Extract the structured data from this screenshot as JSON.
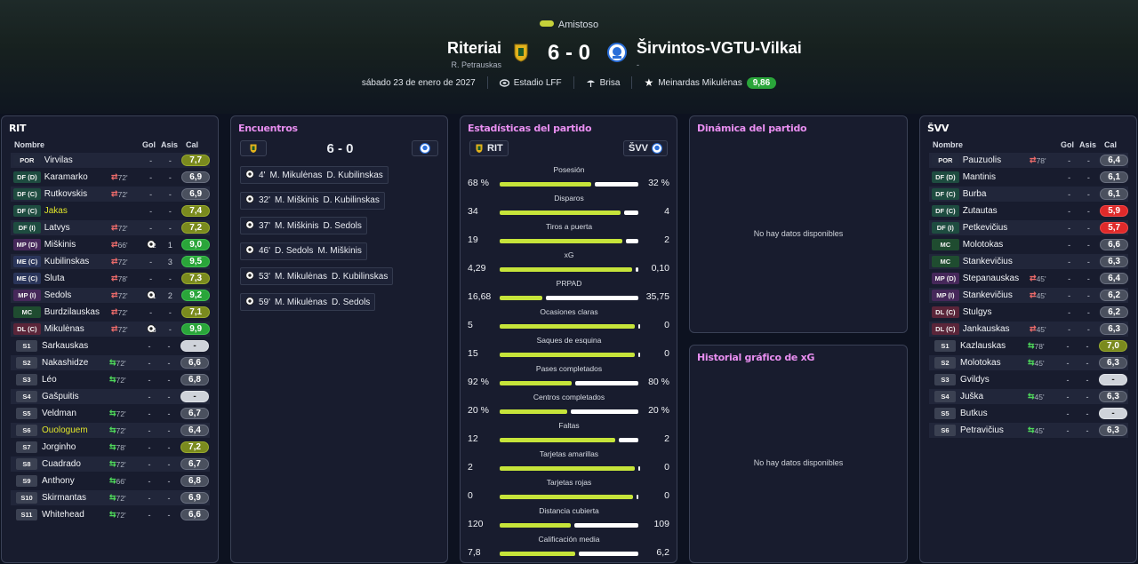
{
  "match": {
    "competition": "Amistoso",
    "home": {
      "name": "Riteriai",
      "manager": "R. Petrauskas",
      "short": "RIT"
    },
    "away": {
      "name": "Širvintos-VGTU-Vilkai",
      "manager": "-",
      "short": "ŠVV"
    },
    "score": "6 - 0",
    "date": "sábado 23 de enero de 2027",
    "stadium": "Estadio LFF",
    "weather": "Brisa",
    "motm": "Meinardas Mikulėnas",
    "motm_rating": "9,86",
    "colors": {
      "accent_purple": "#e88ef0",
      "home_bar": "#c6e43a",
      "rating_green": "#2aa53a"
    }
  },
  "headers": {
    "name": "Nombre",
    "goals": "Gol",
    "assists": "Asis",
    "rating": "Cal"
  },
  "home_players": [
    {
      "pos": "POR",
      "pc": "gk",
      "name": "Virvilas",
      "sub": "",
      "goals": "-",
      "assists": "-",
      "rating": "7,7",
      "rc": "olive"
    },
    {
      "pos": "DF (D)",
      "pc": "df",
      "name": "Karamarko",
      "sub": "off",
      "min": "72'",
      "goals": "-",
      "assists": "-",
      "rating": "6,9",
      "rc": ""
    },
    {
      "pos": "DF (C)",
      "pc": "df",
      "name": "Rutkovskis",
      "sub": "off",
      "min": "72'",
      "goals": "-",
      "assists": "-",
      "rating": "6,9",
      "rc": ""
    },
    {
      "pos": "DF (C)",
      "pc": "df",
      "name": "Jakas",
      "yellow": true,
      "sub": "",
      "goals": "-",
      "assists": "-",
      "rating": "7,4",
      "rc": "olive"
    },
    {
      "pos": "DF (I)",
      "pc": "df",
      "name": "Latvys",
      "sub": "off",
      "min": "72'",
      "goals": "-",
      "assists": "-",
      "rating": "7,2",
      "rc": "olive"
    },
    {
      "pos": "MP (D)",
      "pc": "mp",
      "name": "Miškinis",
      "sub": "off",
      "min": "66'",
      "goals": "ball2",
      "assists": "1",
      "rating": "9,0",
      "rc": "green"
    },
    {
      "pos": "ME (C)",
      "pc": "me",
      "name": "Kubilinskas",
      "sub": "off",
      "min": "72'",
      "goals": "-",
      "assists": "3",
      "rating": "9,5",
      "rc": "green"
    },
    {
      "pos": "ME (C)",
      "pc": "me",
      "name": "Šluta",
      "sub": "off",
      "min": "78'",
      "goals": "-",
      "assists": "-",
      "rating": "7,3",
      "rc": "olive"
    },
    {
      "pos": "MP (I)",
      "pc": "mp",
      "name": "Sedols",
      "sub": "off",
      "min": "72'",
      "goals": "ball1",
      "assists": "2",
      "rating": "9,2",
      "rc": "green"
    },
    {
      "pos": "MC",
      "pc": "mc",
      "name": "Burdzilauskas",
      "sub": "off",
      "min": "72'",
      "goals": "-",
      "assists": "-",
      "rating": "7,1",
      "rc": "olive"
    },
    {
      "pos": "DL (C)",
      "pc": "dl",
      "name": "Mikulėnas",
      "sub": "off",
      "min": "72'",
      "goals": "ball3",
      "assists": "-",
      "rating": "9,9",
      "rc": "green"
    },
    {
      "pos": "S1",
      "pc": "sub",
      "name": "Šarkauskas",
      "sub": "",
      "goals": "-",
      "assists": "-",
      "rating": "-",
      "rc": "dash"
    },
    {
      "pos": "S2",
      "pc": "sub",
      "name": "Nakashidze",
      "sub": "on",
      "min": "72'",
      "goals": "-",
      "assists": "-",
      "rating": "6,6",
      "rc": ""
    },
    {
      "pos": "S3",
      "pc": "sub",
      "name": "Léo",
      "sub": "on",
      "min": "72'",
      "goals": "-",
      "assists": "-",
      "rating": "6,8",
      "rc": ""
    },
    {
      "pos": "S4",
      "pc": "sub",
      "name": "Gašpuitis",
      "sub": "",
      "goals": "-",
      "assists": "-",
      "rating": "-",
      "rc": "dash"
    },
    {
      "pos": "S5",
      "pc": "sub",
      "name": "Veldman",
      "sub": "on",
      "min": "72'",
      "goals": "-",
      "assists": "-",
      "rating": "6,7",
      "rc": ""
    },
    {
      "pos": "S6",
      "pc": "sub",
      "name": "Ouologuem",
      "yellow": true,
      "sub": "on",
      "min": "72'",
      "goals": "-",
      "assists": "-",
      "rating": "6,4",
      "rc": ""
    },
    {
      "pos": "S7",
      "pc": "sub",
      "name": "Jorginho",
      "sub": "on",
      "min": "78'",
      "goals": "-",
      "assists": "-",
      "rating": "7,2",
      "rc": "olive"
    },
    {
      "pos": "S8",
      "pc": "sub",
      "name": "Cuadrado",
      "sub": "on",
      "min": "72'",
      "goals": "-",
      "assists": "-",
      "rating": "6,7",
      "rc": ""
    },
    {
      "pos": "S9",
      "pc": "sub",
      "name": "Anthony",
      "sub": "on",
      "min": "66'",
      "goals": "-",
      "assists": "-",
      "rating": "6,8",
      "rc": ""
    },
    {
      "pos": "S10",
      "pc": "sub",
      "name": "Skirmantas",
      "sub": "on",
      "min": "72'",
      "goals": "-",
      "assists": "-",
      "rating": "6,9",
      "rc": ""
    },
    {
      "pos": "S11",
      "pc": "sub",
      "name": "Whitehead",
      "sub": "on",
      "min": "72'",
      "goals": "-",
      "assists": "-",
      "rating": "6,6",
      "rc": ""
    }
  ],
  "away_players": [
    {
      "pos": "POR",
      "pc": "gk",
      "name": "Pauzuolis",
      "sub": "off",
      "min": "78'",
      "goals": "-",
      "assists": "-",
      "rating": "6,4",
      "rc": ""
    },
    {
      "pos": "DF (D)",
      "pc": "df",
      "name": "Mantinis",
      "sub": "",
      "goals": "-",
      "assists": "-",
      "rating": "6,1",
      "rc": ""
    },
    {
      "pos": "DF (C)",
      "pc": "df",
      "name": "Burba",
      "sub": "",
      "goals": "-",
      "assists": "-",
      "rating": "6,1",
      "rc": ""
    },
    {
      "pos": "DF (C)",
      "pc": "df",
      "name": "Žutautas",
      "sub": "",
      "goals": "-",
      "assists": "-",
      "rating": "5,9",
      "rc": "red"
    },
    {
      "pos": "DF (I)",
      "pc": "df",
      "name": "Petkevičius",
      "sub": "",
      "goals": "-",
      "assists": "-",
      "rating": "5,7",
      "rc": "red"
    },
    {
      "pos": "MC",
      "pc": "mc",
      "name": "Molotokas",
      "sub": "",
      "goals": "-",
      "assists": "-",
      "rating": "6,6",
      "rc": ""
    },
    {
      "pos": "MC",
      "pc": "mc",
      "name": "Stankevičius",
      "sub": "",
      "goals": "-",
      "assists": "-",
      "rating": "6,3",
      "rc": ""
    },
    {
      "pos": "MP (D)",
      "pc": "mp",
      "name": "Stepanauskas",
      "sub": "off",
      "min": "45'",
      "goals": "-",
      "assists": "-",
      "rating": "6,4",
      "rc": ""
    },
    {
      "pos": "MP (I)",
      "pc": "mp",
      "name": "Stankevičius",
      "sub": "off",
      "min": "45'",
      "goals": "-",
      "assists": "-",
      "rating": "6,2",
      "rc": ""
    },
    {
      "pos": "DL (C)",
      "pc": "dl",
      "name": "Stulgys",
      "sub": "",
      "goals": "-",
      "assists": "-",
      "rating": "6,2",
      "rc": ""
    },
    {
      "pos": "DL (C)",
      "pc": "dl",
      "name": "Jankauskas",
      "sub": "off",
      "min": "45'",
      "goals": "-",
      "assists": "-",
      "rating": "6,3",
      "rc": ""
    },
    {
      "pos": "S1",
      "pc": "sub",
      "name": "Kazlauskas",
      "sub": "on",
      "min": "78'",
      "goals": "-",
      "assists": "-",
      "rating": "7,0",
      "rc": "olive"
    },
    {
      "pos": "S2",
      "pc": "sub",
      "name": "Molotokas",
      "sub": "on",
      "min": "45'",
      "goals": "-",
      "assists": "-",
      "rating": "6,3",
      "rc": ""
    },
    {
      "pos": "S3",
      "pc": "sub",
      "name": "Gvildys",
      "sub": "",
      "goals": "-",
      "assists": "-",
      "rating": "-",
      "rc": "dash"
    },
    {
      "pos": "S4",
      "pc": "sub",
      "name": "Juška",
      "sub": "on",
      "min": "45'",
      "goals": "-",
      "assists": "-",
      "rating": "6,3",
      "rc": ""
    },
    {
      "pos": "S5",
      "pc": "sub",
      "name": "Butkus",
      "sub": "",
      "goals": "-",
      "assists": "-",
      "rating": "-",
      "rc": "dash"
    },
    {
      "pos": "S6",
      "pc": "sub",
      "name": "Petravičius",
      "sub": "on",
      "min": "45'",
      "goals": "-",
      "assists": "-",
      "rating": "6,3",
      "rc": ""
    }
  ],
  "panels": {
    "home_title": "RIT",
    "away_title": "ŠVV",
    "encuentros": "Encuentros",
    "stats": "Estadísticas del partido",
    "dynamics": "Dinámica del partido",
    "xg_history": "Historial gráfico de xG",
    "no_data": "No hay datos disponibles"
  },
  "goals": [
    {
      "minute": "4'",
      "scorer": "M. Mikulėnas",
      "assist": "D. Kubilinskas"
    },
    {
      "minute": "32'",
      "scorer": "M. Miškinis",
      "assist": "D. Kubilinskas"
    },
    {
      "minute": "37'",
      "scorer": "M. Miškinis",
      "assist": "D. Sedols"
    },
    {
      "minute": "46'",
      "scorer": "D. Sedols",
      "assist": "M. Miškinis"
    },
    {
      "minute": "53'",
      "scorer": "M. Mikulėnas",
      "assist": "D. Kubilinskas"
    },
    {
      "minute": "59'",
      "scorer": "M. Mikulėnas",
      "assist": "D. Sedols"
    }
  ],
  "stats": [
    {
      "label": "Posesión",
      "home": "68 %",
      "away": "32 %",
      "h": 68,
      "a": 32
    },
    {
      "label": "Disparos",
      "home": "34",
      "away": "4",
      "h": 34,
      "a": 4
    },
    {
      "label": "Tiros a puerta",
      "home": "19",
      "away": "2",
      "h": 19,
      "a": 2
    },
    {
      "label": "xG",
      "home": "4,29",
      "away": "0,10",
      "h": 4.29,
      "a": 0.1
    },
    {
      "label": "PRPAD",
      "home": "16,68",
      "away": "35,75",
      "h": 16.68,
      "a": 35.75
    },
    {
      "label": "Ocasiones claras",
      "home": "5",
      "away": "0",
      "h": 5,
      "a": 0
    },
    {
      "label": "Saques de esquina",
      "home": "15",
      "away": "0",
      "h": 15,
      "a": 0
    },
    {
      "label": "Pases completados",
      "home": "92 %",
      "away": "80 %",
      "h": 92,
      "a": 80
    },
    {
      "label": "Centros completados",
      "home": "20 %",
      "away": "20 %",
      "h": 20,
      "a": 20
    },
    {
      "label": "Faltas",
      "home": "12",
      "away": "2",
      "h": 12,
      "a": 2
    },
    {
      "label": "Tarjetas amarillas",
      "home": "2",
      "away": "0",
      "h": 2,
      "a": 0
    },
    {
      "label": "Tarjetas rojas",
      "home": "0",
      "away": "0",
      "h": 0,
      "a": 0
    },
    {
      "label": "Distancia cubierta",
      "home": "120",
      "away": "109",
      "h": 120,
      "a": 109
    },
    {
      "label": "Calificación media",
      "home": "7,8",
      "away": "6,2",
      "h": 7.8,
      "a": 6.2
    }
  ]
}
